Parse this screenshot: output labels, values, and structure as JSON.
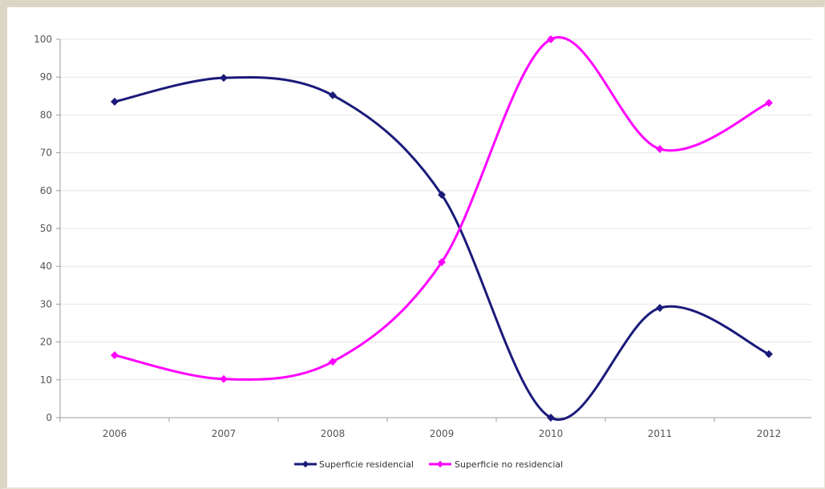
{
  "chart_data": {
    "type": "line",
    "categories": [
      "2006",
      "2007",
      "2008",
      "2009",
      "2010",
      "2011",
      "2012"
    ],
    "series": [
      {
        "name": "Superficie residencial",
        "color": "#1a1a7a",
        "values": [
          83.5,
          89.8,
          85.2,
          58.9,
          0,
          29.0,
          16.8
        ]
      },
      {
        "name": "Superficie no residencial",
        "color": "#ff00ff",
        "values": [
          16.5,
          10.2,
          14.8,
          41.1,
          100,
          71.0,
          83.2
        ]
      }
    ],
    "yticks": [
      "0",
      "10",
      "20",
      "30",
      "40",
      "50",
      "60",
      "70",
      "80",
      "90",
      "100"
    ],
    "ylim": [
      0,
      100
    ],
    "grid": true,
    "legend_position": "bottom",
    "smooth": true
  }
}
